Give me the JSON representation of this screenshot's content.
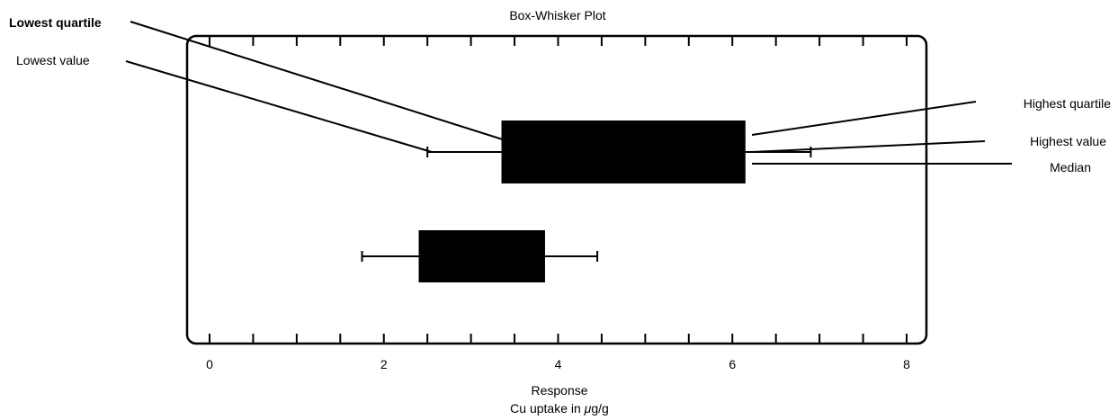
{
  "chart_data": {
    "type": "boxplot",
    "title": "Box-Whisker Plot",
    "xlabel": "Response",
    "xlabel_sub_prefix": "Cu uptake in ",
    "xlabel_sub_mu": "μ",
    "xlabel_sub_suffix": "g/g",
    "xlim": [
      -0.25,
      8.1
    ],
    "ticks": [
      0,
      0.5,
      1,
      1.5,
      2,
      2.5,
      3,
      3.5,
      4,
      4.5,
      5,
      5.5,
      6,
      6.5,
      7,
      7.5,
      8
    ],
    "tick_labels": [
      {
        "value": 0,
        "label": "0"
      },
      {
        "value": 2,
        "label": "2"
      },
      {
        "value": 4,
        "label": "4"
      },
      {
        "value": 6,
        "label": "6"
      },
      {
        "value": 8,
        "label": "8"
      }
    ],
    "boxes": [
      {
        "min": 2.5,
        "q1": 3.35,
        "median": 6.1,
        "q3": 6.15,
        "max": 6.9
      },
      {
        "min": 1.75,
        "q1": 2.4,
        "median": 3.8,
        "q3": 3.85,
        "max": 4.45
      }
    ],
    "annotations": [
      {
        "id": "lowest-quartile",
        "text": "Lowest quartile",
        "bold": true
      },
      {
        "id": "lowest-value",
        "text": "Lowest value",
        "bold": false
      },
      {
        "id": "highest-quartile",
        "text": "Highest quartile",
        "bold": false
      },
      {
        "id": "highest-value",
        "text": "Highest value",
        "bold": false
      },
      {
        "id": "median",
        "text": "Median",
        "bold": false
      }
    ]
  }
}
